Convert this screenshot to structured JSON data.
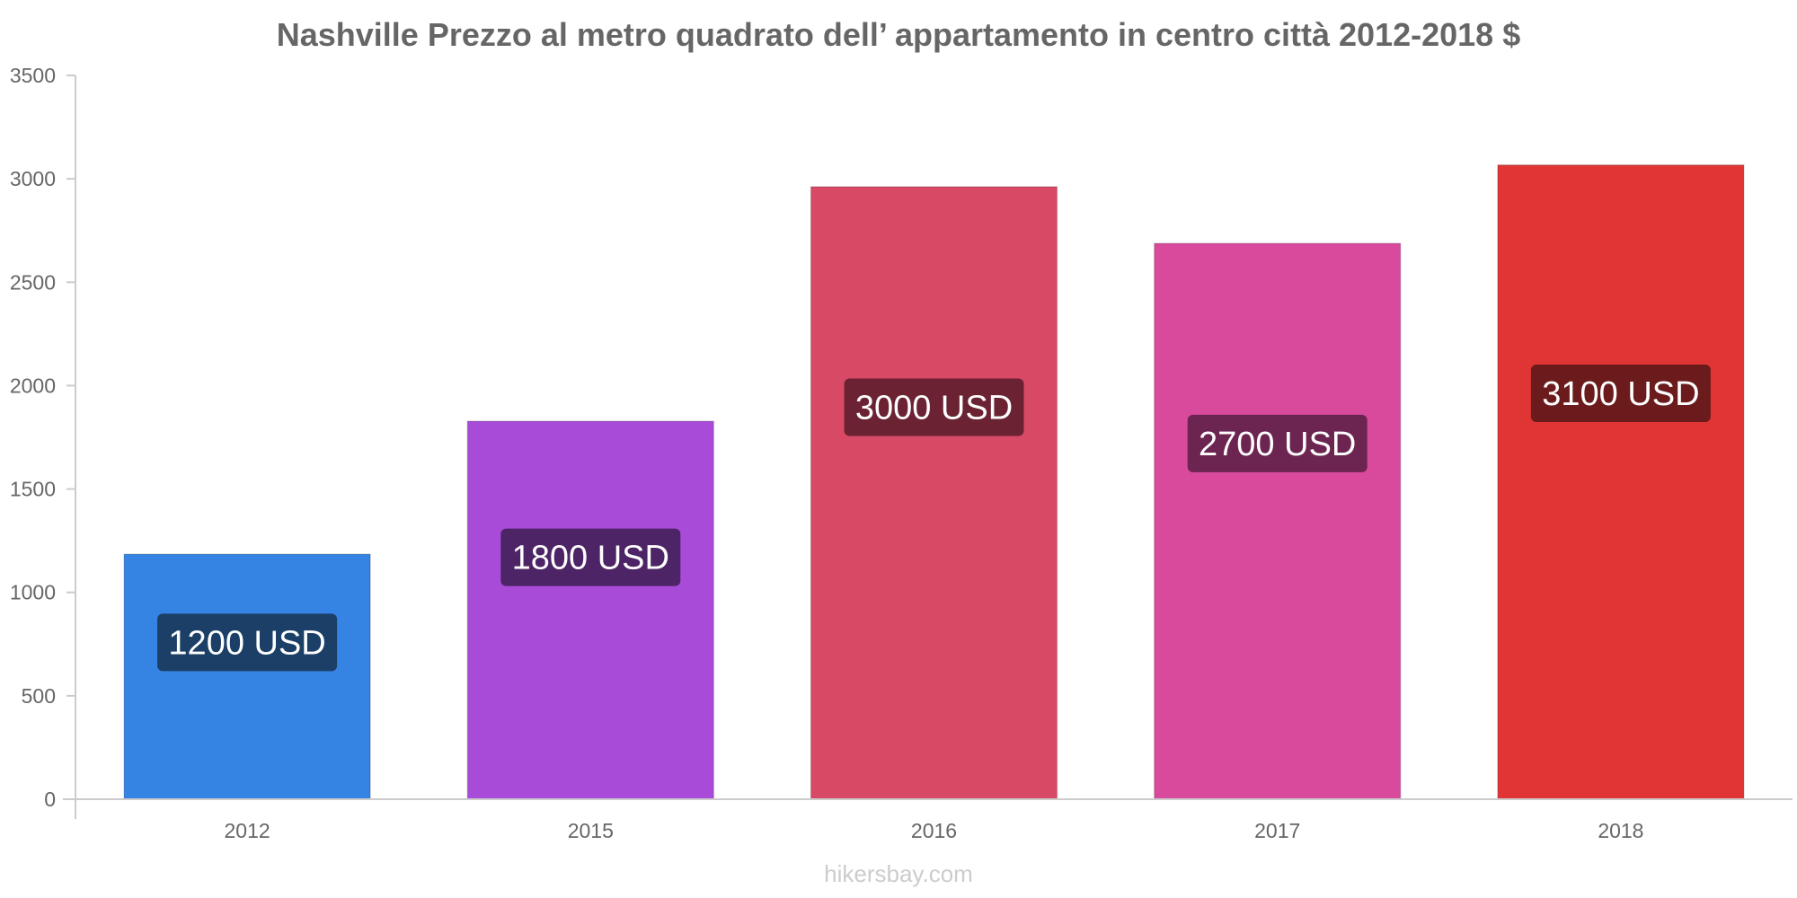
{
  "chart_data": {
    "type": "bar",
    "title": "Nashville Prezzo al metro quadrato dell’ appartamento in centro città 2012-2018 $",
    "categories": [
      "2012",
      "2015",
      "2016",
      "2017",
      "2018"
    ],
    "values": [
      1185,
      1828,
      2962,
      2688,
      3067
    ],
    "data_labels": [
      "1200 USD",
      "1800 USD",
      "3000 USD",
      "2700 USD",
      "3100 USD"
    ],
    "bar_colors": [
      "#3584e4",
      "#a94bd9",
      "#d84965",
      "#d94a9c",
      "#e03535"
    ],
    "label_bg_colors": [
      "#1b3f66",
      "#4d2466",
      "#6b2233",
      "#6b2550",
      "#6b1b1b"
    ],
    "ylim": [
      0,
      3500
    ],
    "yticks": [
      0,
      500,
      1000,
      1500,
      2000,
      2500,
      3000,
      3500
    ],
    "xlabel": "",
    "ylabel": "",
    "grid": false,
    "legend": "none"
  },
  "footer": {
    "watermark": "hikersbay.com"
  }
}
